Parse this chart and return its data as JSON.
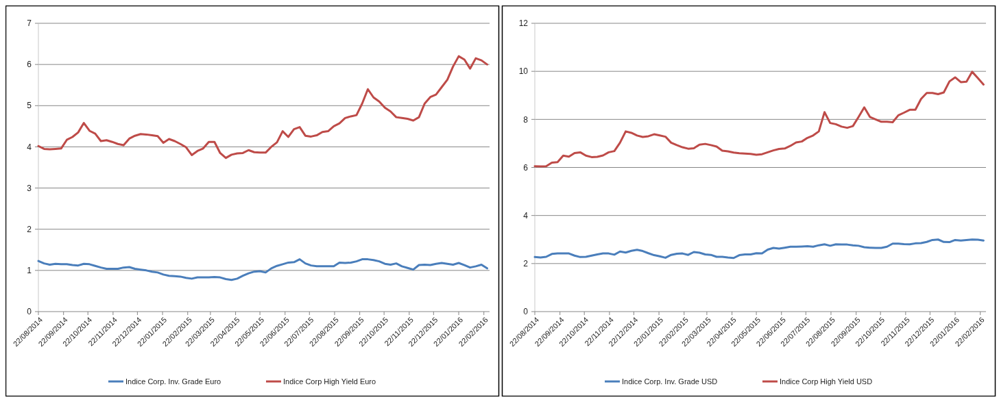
{
  "chart_data": [
    {
      "type": "line",
      "x": [
        "2014-08-22",
        "2014-08-29",
        "2014-09-05",
        "2014-09-12",
        "2014-09-19",
        "2014-09-26",
        "2014-10-03",
        "2014-10-10",
        "2014-10-17",
        "2014-10-24",
        "2014-10-31",
        "2014-11-07",
        "2014-11-14",
        "2014-11-21",
        "2014-11-28",
        "2014-12-05",
        "2014-12-12",
        "2014-12-19",
        "2014-12-26",
        "2015-01-02",
        "2015-01-09",
        "2015-01-16",
        "2015-01-23",
        "2015-01-30",
        "2015-02-06",
        "2015-02-13",
        "2015-02-20",
        "2015-02-27",
        "2015-03-06",
        "2015-03-13",
        "2015-03-20",
        "2015-03-27",
        "2015-04-03",
        "2015-04-10",
        "2015-04-17",
        "2015-04-24",
        "2015-05-01",
        "2015-05-08",
        "2015-05-15",
        "2015-05-22",
        "2015-05-29",
        "2015-06-05",
        "2015-06-12",
        "2015-06-19",
        "2015-06-26",
        "2015-07-03",
        "2015-07-10",
        "2015-07-17",
        "2015-07-24",
        "2015-07-31",
        "2015-08-07",
        "2015-08-14",
        "2015-08-21",
        "2015-08-28",
        "2015-09-04",
        "2015-09-11",
        "2015-09-18",
        "2015-09-25",
        "2015-10-02",
        "2015-10-09",
        "2015-10-16",
        "2015-10-23",
        "2015-10-30",
        "2015-11-06",
        "2015-11-13",
        "2015-11-20",
        "2015-11-27",
        "2015-12-04",
        "2015-12-11",
        "2015-12-18",
        "2015-12-25",
        "2016-01-01",
        "2016-01-08",
        "2016-01-15",
        "2016-01-22",
        "2016-01-29",
        "2016-02-05",
        "2016-02-12",
        "2016-02-19",
        "2016-02-26"
      ],
      "series": [
        {
          "name": "Indice Corp. Inv. Grade Euro",
          "color": "#4a7ebb",
          "values": [
            1.23,
            1.17,
            1.14,
            1.16,
            1.15,
            1.15,
            1.13,
            1.12,
            1.16,
            1.15,
            1.11,
            1.07,
            1.04,
            1.04,
            1.04,
            1.07,
            1.08,
            1.04,
            1.02,
            1.0,
            0.97,
            0.95,
            0.9,
            0.87,
            0.86,
            0.85,
            0.82,
            0.8,
            0.83,
            0.83,
            0.83,
            0.84,
            0.83,
            0.79,
            0.77,
            0.8,
            0.87,
            0.93,
            0.97,
            0.98,
            0.95,
            1.05,
            1.11,
            1.15,
            1.19,
            1.2,
            1.27,
            1.17,
            1.12,
            1.1,
            1.1,
            1.1,
            1.1,
            1.19,
            1.18,
            1.19,
            1.22,
            1.27,
            1.27,
            1.25,
            1.22,
            1.16,
            1.14,
            1.17,
            1.1,
            1.06,
            1.02,
            1.13,
            1.14,
            1.13,
            1.16,
            1.18,
            1.16,
            1.14,
            1.18,
            1.13,
            1.07,
            1.1,
            1.14,
            1.05
          ]
        },
        {
          "name": "Indice Corp High Yield Euro",
          "color": "#be4b48",
          "values": [
            4.02,
            3.95,
            3.94,
            3.95,
            3.96,
            4.17,
            4.24,
            4.35,
            4.58,
            4.39,
            4.32,
            4.14,
            4.16,
            4.12,
            4.07,
            4.04,
            4.2,
            4.27,
            4.31,
            4.3,
            4.28,
            4.26,
            4.1,
            4.19,
            4.14,
            4.07,
            3.99,
            3.8,
            3.9,
            3.96,
            4.12,
            4.12,
            3.85,
            3.73,
            3.81,
            3.84,
            3.85,
            3.92,
            3.87,
            3.86,
            3.86,
            4.0,
            4.11,
            4.38,
            4.24,
            4.43,
            4.48,
            4.27,
            4.25,
            4.28,
            4.36,
            4.38,
            4.5,
            4.57,
            4.7,
            4.74,
            4.77,
            5.05,
            5.4,
            5.2,
            5.1,
            4.95,
            4.86,
            4.72,
            4.7,
            4.68,
            4.64,
            4.72,
            5.05,
            5.21,
            5.27,
            5.45,
            5.63,
            5.95,
            6.2,
            6.12,
            5.9,
            6.15,
            6.1,
            6.0
          ]
        }
      ],
      "xlim": [
        "2014-08-22",
        "2016-02-29"
      ],
      "xticks": [
        {
          "value": "2014-08-22",
          "label": "22/08/2014"
        },
        {
          "value": "2014-09-22",
          "label": "22/09/2014"
        },
        {
          "value": "2014-10-22",
          "label": "22/10/2014"
        },
        {
          "value": "2014-11-22",
          "label": "22/11/2014"
        },
        {
          "value": "2014-12-22",
          "label": "22/12/2014"
        },
        {
          "value": "2015-01-22",
          "label": "22/01/2015"
        },
        {
          "value": "2015-02-22",
          "label": "22/02/2015"
        },
        {
          "value": "2015-03-22",
          "label": "22/03/2015"
        },
        {
          "value": "2015-04-22",
          "label": "22/04/2015"
        },
        {
          "value": "2015-05-22",
          "label": "22/05/2015"
        },
        {
          "value": "2015-06-22",
          "label": "22/06/2015"
        },
        {
          "value": "2015-07-22",
          "label": "22/07/2015"
        },
        {
          "value": "2015-08-22",
          "label": "22/08/2015"
        },
        {
          "value": "2015-09-22",
          "label": "22/09/2015"
        },
        {
          "value": "2015-10-22",
          "label": "22/10/2015"
        },
        {
          "value": "2015-11-22",
          "label": "22/11/2015"
        },
        {
          "value": "2015-12-22",
          "label": "22/12/2015"
        },
        {
          "value": "2016-01-22",
          "label": "22/01/2016"
        },
        {
          "value": "2016-02-22",
          "label": "22/02/2016"
        }
      ],
      "ylim": [
        0,
        7
      ],
      "yticks": [
        0,
        1,
        2,
        3,
        4,
        5,
        6,
        7
      ],
      "grid": "y",
      "legend": "bottom"
    },
    {
      "type": "line",
      "x": [
        "2014-08-22",
        "2014-08-29",
        "2014-09-05",
        "2014-09-12",
        "2014-09-19",
        "2014-09-26",
        "2014-10-03",
        "2014-10-10",
        "2014-10-17",
        "2014-10-24",
        "2014-10-31",
        "2014-11-07",
        "2014-11-14",
        "2014-11-21",
        "2014-11-28",
        "2014-12-05",
        "2014-12-12",
        "2014-12-19",
        "2014-12-26",
        "2015-01-02",
        "2015-01-09",
        "2015-01-16",
        "2015-01-23",
        "2015-01-30",
        "2015-02-06",
        "2015-02-13",
        "2015-02-20",
        "2015-02-27",
        "2015-03-06",
        "2015-03-13",
        "2015-03-20",
        "2015-03-27",
        "2015-04-03",
        "2015-04-10",
        "2015-04-17",
        "2015-04-24",
        "2015-05-01",
        "2015-05-08",
        "2015-05-15",
        "2015-05-22",
        "2015-05-29",
        "2015-06-05",
        "2015-06-12",
        "2015-06-19",
        "2015-06-26",
        "2015-07-03",
        "2015-07-10",
        "2015-07-17",
        "2015-07-24",
        "2015-07-31",
        "2015-08-07",
        "2015-08-14",
        "2015-08-21",
        "2015-08-28",
        "2015-09-04",
        "2015-09-11",
        "2015-09-18",
        "2015-09-25",
        "2015-10-02",
        "2015-10-09",
        "2015-10-16",
        "2015-10-23",
        "2015-10-30",
        "2015-11-06",
        "2015-11-13",
        "2015-11-20",
        "2015-11-27",
        "2015-12-04",
        "2015-12-11",
        "2015-12-18",
        "2015-12-25",
        "2016-01-01",
        "2016-01-08",
        "2016-01-15",
        "2016-01-22",
        "2016-01-29",
        "2016-02-05",
        "2016-02-12",
        "2016-02-19",
        "2016-02-26"
      ],
      "series": [
        {
          "name": "Indice Corp. Inv. Grade USD",
          "color": "#4a7ebb",
          "values": [
            2.27,
            2.25,
            2.28,
            2.4,
            2.42,
            2.42,
            2.42,
            2.33,
            2.27,
            2.28,
            2.33,
            2.38,
            2.42,
            2.42,
            2.37,
            2.5,
            2.46,
            2.53,
            2.57,
            2.52,
            2.43,
            2.35,
            2.3,
            2.24,
            2.36,
            2.41,
            2.42,
            2.36,
            2.48,
            2.45,
            2.38,
            2.36,
            2.28,
            2.28,
            2.25,
            2.23,
            2.35,
            2.38,
            2.38,
            2.43,
            2.42,
            2.58,
            2.65,
            2.62,
            2.66,
            2.7,
            2.7,
            2.71,
            2.72,
            2.7,
            2.76,
            2.8,
            2.74,
            2.8,
            2.79,
            2.79,
            2.76,
            2.74,
            2.68,
            2.66,
            2.65,
            2.65,
            2.7,
            2.83,
            2.83,
            2.81,
            2.8,
            2.84,
            2.85,
            2.9,
            2.98,
            3.0,
            2.9,
            2.89,
            2.98,
            2.96,
            2.98,
            3.0,
            2.99,
            2.96
          ]
        },
        {
          "name": "Indice Corp High Yield USD",
          "color": "#be4b48",
          "values": [
            6.05,
            6.04,
            6.05,
            6.2,
            6.22,
            6.49,
            6.45,
            6.6,
            6.63,
            6.49,
            6.43,
            6.44,
            6.5,
            6.63,
            6.68,
            7.03,
            7.5,
            7.44,
            7.33,
            7.27,
            7.3,
            7.38,
            7.33,
            7.28,
            7.03,
            6.93,
            6.84,
            6.78,
            6.8,
            6.95,
            6.98,
            6.93,
            6.87,
            6.7,
            6.67,
            6.62,
            6.59,
            6.58,
            6.56,
            6.53,
            6.55,
            6.63,
            6.71,
            6.77,
            6.79,
            6.9,
            7.04,
            7.08,
            7.23,
            7.33,
            7.5,
            8.3,
            7.85,
            7.8,
            7.7,
            7.65,
            7.72,
            8.1,
            8.5,
            8.1,
            8.0,
            7.9,
            7.9,
            7.88,
            8.17,
            8.28,
            8.4,
            8.4,
            8.85,
            9.1,
            9.1,
            9.05,
            9.12,
            9.58,
            9.75,
            9.55,
            9.57,
            9.98,
            9.72,
            9.45
          ]
        }
      ],
      "xlim": [
        "2014-08-22",
        "2016-02-29"
      ],
      "xticks": [
        {
          "value": "2014-08-22",
          "label": "22/08/2014"
        },
        {
          "value": "2014-09-22",
          "label": "22/09/2014"
        },
        {
          "value": "2014-10-22",
          "label": "22/10/2014"
        },
        {
          "value": "2014-11-22",
          "label": "22/11/2014"
        },
        {
          "value": "2014-12-22",
          "label": "22/12/2014"
        },
        {
          "value": "2015-01-22",
          "label": "22/01/2015"
        },
        {
          "value": "2015-02-22",
          "label": "22/02/2015"
        },
        {
          "value": "2015-03-22",
          "label": "22/03/2015"
        },
        {
          "value": "2015-04-22",
          "label": "22/04/2015"
        },
        {
          "value": "2015-05-22",
          "label": "22/05/2015"
        },
        {
          "value": "2015-06-22",
          "label": "22/06/2015"
        },
        {
          "value": "2015-07-22",
          "label": "22/07/2015"
        },
        {
          "value": "2015-08-22",
          "label": "22/08/2015"
        },
        {
          "value": "2015-09-22",
          "label": "22/09/2015"
        },
        {
          "value": "2015-10-22",
          "label": "22/10/2015"
        },
        {
          "value": "2015-11-22",
          "label": "22/11/2015"
        },
        {
          "value": "2015-12-22",
          "label": "22/12/2015"
        },
        {
          "value": "2016-01-22",
          "label": "22/01/2016"
        },
        {
          "value": "2016-02-22",
          "label": "22/02/2016"
        }
      ],
      "ylim": [
        0,
        12
      ],
      "yticks": [
        0,
        2,
        4,
        6,
        8,
        10,
        12
      ],
      "grid": "y",
      "legend": "bottom"
    }
  ]
}
